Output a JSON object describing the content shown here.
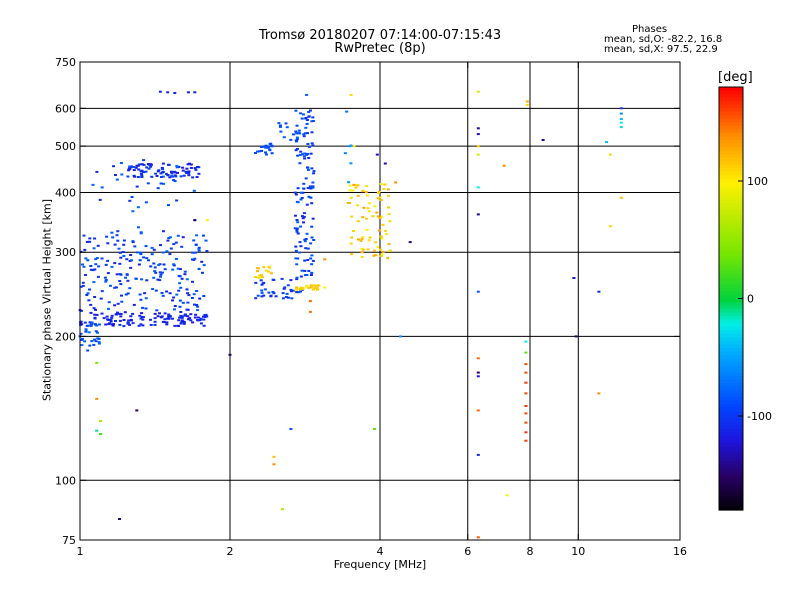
{
  "header": {
    "title_line1": "Tromsø 20180207 07:14:00-07:15:43",
    "title_line2": "RwPretec (8p)",
    "stats_title": "Phases",
    "stats_o": "mean, sd,O:  -82.2, 16.8",
    "stats_x": "mean, sd,X:  97.5, 22.9"
  },
  "colorbar": {
    "unit": "[deg]",
    "min": -180,
    "max": 180,
    "ticks": [
      100,
      0,
      -100
    ],
    "tick_labels": [
      "100",
      "0",
      "-100"
    ]
  },
  "chart_data": {
    "type": "scatter",
    "title": "Tromsø 20180207 07:14:00-07:15:43",
    "subtitle": "RwPretec (8p)",
    "xlabel": "Frequency [MHz]",
    "ylabel": "Stationary phase Virtual Height [km]",
    "xscale": "log",
    "yscale": "log",
    "xlim": [
      1,
      16
    ],
    "ylim": [
      75,
      750
    ],
    "xticks": [
      1,
      2,
      4,
      6,
      8,
      10,
      16
    ],
    "xtick_labels": [
      "1",
      "2",
      "4",
      "6",
      "8",
      "10",
      "16"
    ],
    "xgrid": [
      2,
      4,
      6,
      8,
      10
    ],
    "yticks": [
      75,
      100,
      200,
      300,
      400,
      500,
      600,
      750
    ],
    "ytick_labels": [
      "75",
      "100",
      "200",
      "300",
      "400",
      "500",
      "600",
      "750"
    ],
    "ygrid": [
      100,
      200,
      300,
      400,
      500,
      600
    ],
    "point_color_meaning": "phase [deg]",
    "grid": true,
    "clusters": [
      {
        "f": [
          1.0,
          1.8
        ],
        "h": [
          210,
          225
        ],
        "phase": [
          -120,
          -100
        ],
        "n": 130
      },
      {
        "f": [
          1.0,
          1.8
        ],
        "h": [
          226,
          330
        ],
        "phase": [
          -115,
          -75
        ],
        "n": 210
      },
      {
        "f": [
          1.0,
          1.1
        ],
        "h": [
          185,
          215
        ],
        "phase": [
          -95,
          -70
        ],
        "n": 30
      },
      {
        "f": [
          1.25,
          1.75
        ],
        "h": [
          430,
          460
        ],
        "phase": [
          -120,
          -95
        ],
        "n": 80
      },
      {
        "f": [
          1.05,
          1.7
        ],
        "h": [
          330,
          470
        ],
        "phase": [
          -110,
          -70
        ],
        "n": 40
      },
      {
        "f": [
          2.25,
          2.8
        ],
        "h": [
          240,
          265
        ],
        "phase": [
          -110,
          -80
        ],
        "n": 40
      },
      {
        "f": [
          2.7,
          2.95
        ],
        "h": [
          265,
          600
        ],
        "phase": [
          -110,
          -75
        ],
        "n": 120
      },
      {
        "f": [
          2.25,
          2.45
        ],
        "h": [
          480,
          510
        ],
        "phase": [
          -95,
          -80
        ],
        "n": 20
      },
      {
        "f": [
          2.5,
          2.8
        ],
        "h": [
          510,
          560
        ],
        "phase": [
          -95,
          -80
        ],
        "n": 15
      },
      {
        "f": [
          2.7,
          3.1
        ],
        "h": [
          250,
          256
        ],
        "phase": [
          100,
          120
        ],
        "n": 25
      },
      {
        "f": [
          2.25,
          2.45
        ],
        "h": [
          265,
          280
        ],
        "phase": [
          105,
          125
        ],
        "n": 15
      },
      {
        "f": [
          3.45,
          4.2
        ],
        "h": [
          290,
          420
        ],
        "phase": [
          95,
          130
        ],
        "n": 80
      },
      {
        "f": [
          3.4,
          3.5
        ],
        "h": [
          420,
          600
        ],
        "phase": [
          -80,
          -50
        ],
        "n": 6
      }
    ],
    "points": [
      {
        "f": 1.45,
        "h": 650,
        "phase": -110
      },
      {
        "f": 1.5,
        "h": 648,
        "phase": -110
      },
      {
        "f": 1.55,
        "h": 646,
        "phase": -110
      },
      {
        "f": 1.65,
        "h": 648,
        "phase": -110
      },
      {
        "f": 1.7,
        "h": 648,
        "phase": -110
      },
      {
        "f": 2.85,
        "h": 640,
        "phase": -80
      },
      {
        "f": 3.5,
        "h": 640,
        "phase": 110
      },
      {
        "f": 3.55,
        "h": 500,
        "phase": 110
      },
      {
        "f": 3.95,
        "h": 480,
        "phase": -125
      },
      {
        "f": 4.1,
        "h": 460,
        "phase": -130
      },
      {
        "f": 4.3,
        "h": 420,
        "phase": 140
      },
      {
        "f": 4.6,
        "h": 315,
        "phase": -140
      },
      {
        "f": 4.4,
        "h": 200,
        "phase": -60
      },
      {
        "f": 3.9,
        "h": 128,
        "phase": 30
      },
      {
        "f": 2.65,
        "h": 128,
        "phase": -80
      },
      {
        "f": 2.45,
        "h": 112,
        "phase": 120
      },
      {
        "f": 2.45,
        "h": 108,
        "phase": 140
      },
      {
        "f": 2.55,
        "h": 87,
        "phase": 60
      },
      {
        "f": 2.0,
        "h": 183,
        "phase": -150
      },
      {
        "f": 2.9,
        "h": 237,
        "phase": 150
      },
      {
        "f": 2.9,
        "h": 225,
        "phase": 150
      },
      {
        "f": 3.1,
        "h": 290,
        "phase": 140
      },
      {
        "f": 1.08,
        "h": 176,
        "phase": 40
      },
      {
        "f": 1.08,
        "h": 148,
        "phase": 140
      },
      {
        "f": 1.1,
        "h": 133,
        "phase": 60
      },
      {
        "f": 1.08,
        "h": 127,
        "phase": -10
      },
      {
        "f": 1.1,
        "h": 125,
        "phase": 20
      },
      {
        "f": 1.3,
        "h": 140,
        "phase": -150
      },
      {
        "f": 1.2,
        "h": 83,
        "phase": -140
      },
      {
        "f": 6.3,
        "h": 650,
        "phase": 80
      },
      {
        "f": 6.3,
        "h": 545,
        "phase": -140
      },
      {
        "f": 6.3,
        "h": 530,
        "phase": -130
      },
      {
        "f": 6.3,
        "h": 500,
        "phase": 120
      },
      {
        "f": 6.3,
        "h": 480,
        "phase": 80
      },
      {
        "f": 6.3,
        "h": 410,
        "phase": -20
      },
      {
        "f": 6.3,
        "h": 360,
        "phase": -140
      },
      {
        "f": 6.3,
        "h": 248,
        "phase": -80
      },
      {
        "f": 6.3,
        "h": 180,
        "phase": 150
      },
      {
        "f": 6.3,
        "h": 168,
        "phase": -150
      },
      {
        "f": 6.3,
        "h": 165,
        "phase": -120
      },
      {
        "f": 6.3,
        "h": 140,
        "phase": 150
      },
      {
        "f": 6.3,
        "h": 113,
        "phase": -110
      },
      {
        "f": 6.3,
        "h": 76,
        "phase": 155
      },
      {
        "f": 7.1,
        "h": 455,
        "phase": 140
      },
      {
        "f": 7.2,
        "h": 93,
        "phase": 100
      },
      {
        "f": 7.9,
        "h": 620,
        "phase": 130
      },
      {
        "f": 7.9,
        "h": 610,
        "phase": 110
      },
      {
        "f": 7.85,
        "h": 195,
        "phase": -20
      },
      {
        "f": 7.85,
        "h": 185,
        "phase": 30
      },
      {
        "f": 7.85,
        "h": 175,
        "phase": 160
      },
      {
        "f": 7.85,
        "h": 168,
        "phase": 160
      },
      {
        "f": 7.85,
        "h": 160,
        "phase": 165
      },
      {
        "f": 7.85,
        "h": 152,
        "phase": 160
      },
      {
        "f": 7.85,
        "h": 143,
        "phase": 165
      },
      {
        "f": 7.85,
        "h": 138,
        "phase": 160
      },
      {
        "f": 7.85,
        "h": 132,
        "phase": 160
      },
      {
        "f": 7.85,
        "h": 126,
        "phase": 165
      },
      {
        "f": 7.85,
        "h": 121,
        "phase": 165
      },
      {
        "f": 8.5,
        "h": 515,
        "phase": -140
      },
      {
        "f": 9.8,
        "h": 265,
        "phase": -120
      },
      {
        "f": 9.9,
        "h": 200,
        "phase": -150
      },
      {
        "f": 11.4,
        "h": 510,
        "phase": -40
      },
      {
        "f": 11.0,
        "h": 248,
        "phase": -110
      },
      {
        "f": 11.0,
        "h": 152,
        "phase": 140
      },
      {
        "f": 11.6,
        "h": 480,
        "phase": 110
      },
      {
        "f": 11.6,
        "h": 340,
        "phase": 110
      },
      {
        "f": 12.2,
        "h": 600,
        "phase": -100
      },
      {
        "f": 12.2,
        "h": 585,
        "phase": -60
      },
      {
        "f": 12.2,
        "h": 570,
        "phase": -40
      },
      {
        "f": 12.2,
        "h": 560,
        "phase": -20
      },
      {
        "f": 12.2,
        "h": 548,
        "phase": -30
      },
      {
        "f": 12.2,
        "h": 390,
        "phase": 120
      },
      {
        "f": 1.8,
        "h": 350,
        "phase": 100
      },
      {
        "f": 1.7,
        "h": 350,
        "phase": -150
      }
    ]
  }
}
